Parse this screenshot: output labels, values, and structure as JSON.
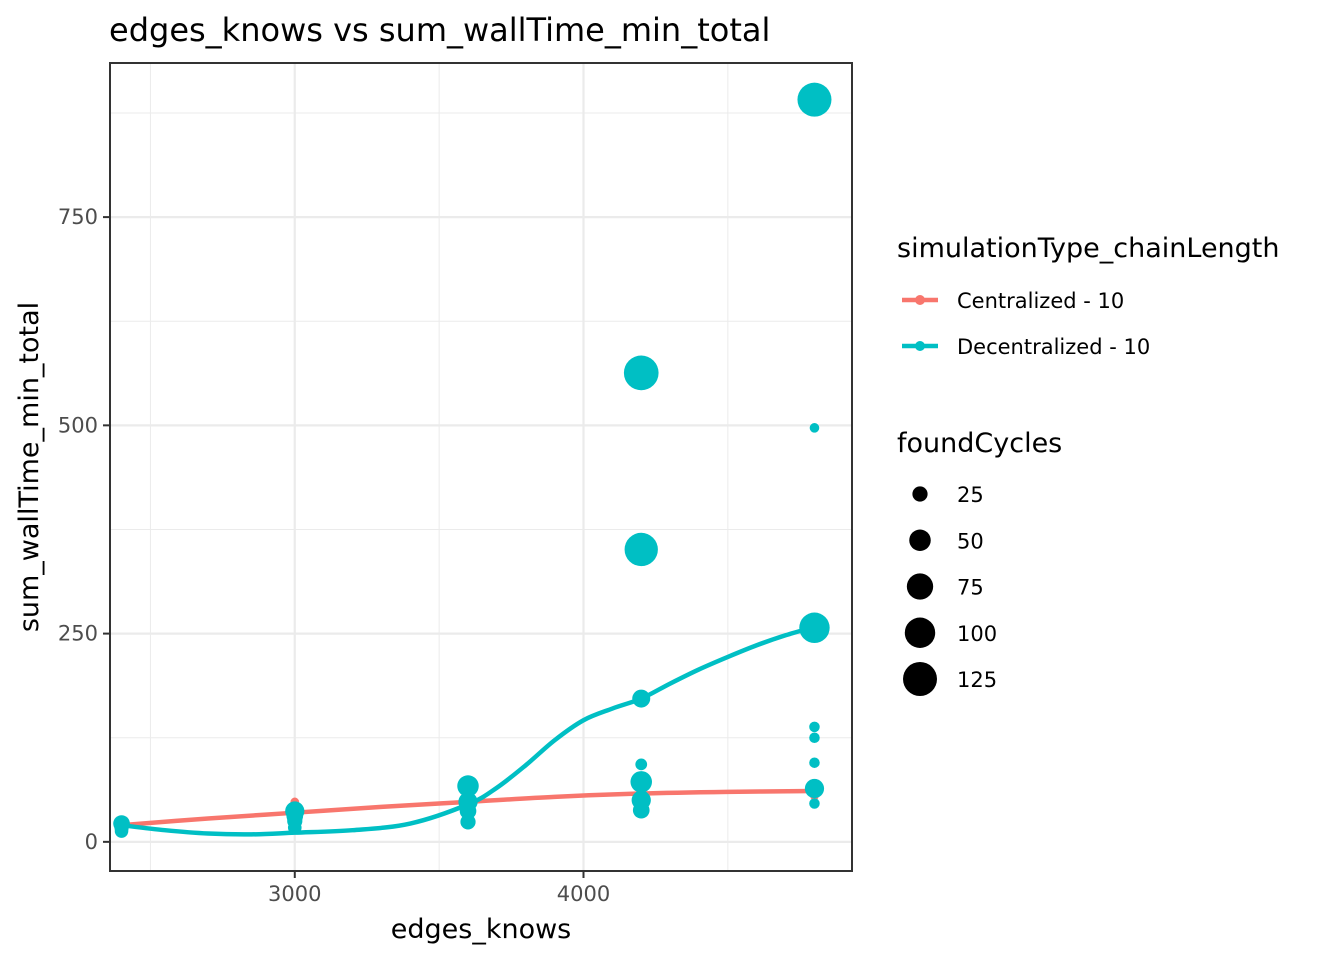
{
  "chart_data": {
    "type": "scatter",
    "title": "edges_knows  vs  sum_wallTime_min_total",
    "xlabel": "edges_knows",
    "ylabel": "sum_wallTime_min_total",
    "xlim": [
      2360,
      4930
    ],
    "ylim": [
      -35,
      935
    ],
    "x_ticks": [
      3000,
      4000
    ],
    "y_ticks": [
      0,
      250,
      500,
      750
    ],
    "x_tick_labels": [
      "3000",
      "4000"
    ],
    "y_tick_labels": [
      "0",
      "250",
      "500",
      "750"
    ],
    "grid": true,
    "legend_position": "right",
    "legend_color_title": "simulationType_chainLength",
    "legend_size_title": "foundCycles",
    "size_legend": [
      {
        "value": 25,
        "label": "25"
      },
      {
        "value": 50,
        "label": "50"
      },
      {
        "value": 75,
        "label": "75"
      },
      {
        "value": 100,
        "label": "100"
      },
      {
        "value": 125,
        "label": "125"
      }
    ],
    "series": [
      {
        "name": "Centralized - 10",
        "color": "#F8766D",
        "points": [
          {
            "x": 2400,
            "y": 18,
            "size": 10
          },
          {
            "x": 2400,
            "y": 22,
            "size": 12
          },
          {
            "x": 3000,
            "y": 48,
            "size": 8
          },
          {
            "x": 3000,
            "y": 42,
            "size": 8
          },
          {
            "x": 3000,
            "y": 36,
            "size": 10
          },
          {
            "x": 3000,
            "y": 30,
            "size": 8
          },
          {
            "x": 3600,
            "y": 58,
            "size": 8
          },
          {
            "x": 3600,
            "y": 48,
            "size": 10
          },
          {
            "x": 3600,
            "y": 42,
            "size": 8
          },
          {
            "x": 4200,
            "y": 62,
            "size": 8
          },
          {
            "x": 4200,
            "y": 55,
            "size": 10
          },
          {
            "x": 4200,
            "y": 50,
            "size": 8
          },
          {
            "x": 4800,
            "y": 68,
            "size": 8
          },
          {
            "x": 4800,
            "y": 60,
            "size": 10
          },
          {
            "x": 4800,
            "y": 55,
            "size": 8
          }
        ],
        "smooth": [
          {
            "x": 2400,
            "y": 20
          },
          {
            "x": 2700,
            "y": 28
          },
          {
            "x": 3000,
            "y": 35
          },
          {
            "x": 3300,
            "y": 42
          },
          {
            "x": 3600,
            "y": 48
          },
          {
            "x": 3900,
            "y": 54
          },
          {
            "x": 4200,
            "y": 58
          },
          {
            "x": 4500,
            "y": 60
          },
          {
            "x": 4800,
            "y": 61
          }
        ]
      },
      {
        "name": "Decentralized - 10",
        "color": "#00BFC4",
        "points": [
          {
            "x": 2400,
            "y": 13,
            "size": 20
          },
          {
            "x": 2400,
            "y": 17,
            "size": 22
          },
          {
            "x": 2400,
            "y": 22,
            "size": 30
          },
          {
            "x": 3000,
            "y": 17,
            "size": 20
          },
          {
            "x": 3000,
            "y": 25,
            "size": 25
          },
          {
            "x": 3000,
            "y": 31,
            "size": 30
          },
          {
            "x": 3000,
            "y": 37,
            "size": 40
          },
          {
            "x": 3600,
            "y": 24,
            "size": 25
          },
          {
            "x": 3600,
            "y": 37,
            "size": 30
          },
          {
            "x": 3600,
            "y": 48,
            "size": 40
          },
          {
            "x": 3600,
            "y": 67,
            "size": 50
          },
          {
            "x": 4200,
            "y": 38,
            "size": 30
          },
          {
            "x": 4200,
            "y": 50,
            "size": 40
          },
          {
            "x": 4200,
            "y": 72,
            "size": 50
          },
          {
            "x": 4200,
            "y": 93,
            "size": 15
          },
          {
            "x": 4200,
            "y": 172,
            "size": 35
          },
          {
            "x": 4200,
            "y": 351,
            "size": 120
          },
          {
            "x": 4200,
            "y": 563,
            "size": 130
          },
          {
            "x": 4800,
            "y": 46,
            "size": 12
          },
          {
            "x": 4800,
            "y": 64,
            "size": 40
          },
          {
            "x": 4800,
            "y": 95,
            "size": 12
          },
          {
            "x": 4800,
            "y": 125,
            "size": 12
          },
          {
            "x": 4800,
            "y": 138,
            "size": 12
          },
          {
            "x": 4800,
            "y": 257,
            "size": 100
          },
          {
            "x": 4800,
            "y": 497,
            "size": 10
          },
          {
            "x": 4800,
            "y": 891,
            "size": 125
          }
        ],
        "smooth": [
          {
            "x": 2400,
            "y": 20
          },
          {
            "x": 2550,
            "y": 14
          },
          {
            "x": 2700,
            "y": 10
          },
          {
            "x": 2850,
            "y": 9
          },
          {
            "x": 3000,
            "y": 11
          },
          {
            "x": 3200,
            "y": 14
          },
          {
            "x": 3400,
            "y": 22
          },
          {
            "x": 3600,
            "y": 45
          },
          {
            "x": 3700,
            "y": 65
          },
          {
            "x": 3800,
            "y": 92
          },
          {
            "x": 3900,
            "y": 122
          },
          {
            "x": 4000,
            "y": 146
          },
          {
            "x": 4100,
            "y": 160
          },
          {
            "x": 4200,
            "y": 172
          },
          {
            "x": 4300,
            "y": 190
          },
          {
            "x": 4400,
            "y": 207
          },
          {
            "x": 4500,
            "y": 222
          },
          {
            "x": 4600,
            "y": 236
          },
          {
            "x": 4700,
            "y": 248
          },
          {
            "x": 4800,
            "y": 258
          }
        ]
      }
    ]
  }
}
